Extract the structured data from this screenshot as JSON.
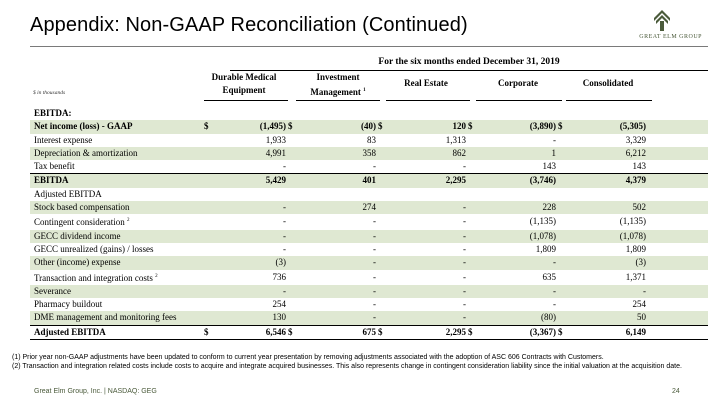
{
  "title": "Appendix: Non-GAAP Reconciliation (Continued)",
  "logo": {
    "text": "GREAT ELM GROUP",
    "icon": "roof-chevron-icon",
    "color": "#4a5a3a"
  },
  "table": {
    "period": "For the six months ended December 31, 2019",
    "units": "$ in thousands",
    "columns": [
      {
        "line1": "Durable Medical",
        "line2": "Equipment",
        "note": ""
      },
      {
        "line1": "Investment",
        "line2": "Management",
        "note": "1"
      },
      {
        "line1": "Real Estate",
        "line2": "",
        "note": ""
      },
      {
        "line1": "Corporate",
        "line2": "",
        "note": ""
      },
      {
        "line1": "Consolidated",
        "line2": "",
        "note": ""
      }
    ],
    "rows": [
      {
        "label": "EBITDA:",
        "note": "",
        "values": [
          "",
          "",
          "",
          "",
          ""
        ],
        "currency": false
      },
      {
        "label": "Net income (loss) - GAAP",
        "note": "",
        "values": [
          "(1,495)",
          "(40)",
          "120",
          "(3,890)",
          "(5,305)"
        ],
        "currency": true
      },
      {
        "label": "Interest expense",
        "note": "",
        "values": [
          "1,933",
          "83",
          "1,313",
          "-",
          "3,329"
        ],
        "currency": false
      },
      {
        "label": "Depreciation & amortization",
        "note": "",
        "values": [
          "4,991",
          "358",
          "862",
          "1",
          "6,212"
        ],
        "currency": false
      },
      {
        "label": "Tax benefit",
        "note": "",
        "values": [
          "-",
          "-",
          "-",
          "143",
          "143"
        ],
        "currency": false
      },
      {
        "label": "EBITDA",
        "note": "",
        "values": [
          "5,429",
          "401",
          "2,295",
          "(3,746)",
          "4,379"
        ],
        "currency": false
      },
      {
        "label": "Adjusted EBITDA",
        "note": "",
        "values": [
          "",
          "",
          "",
          "",
          ""
        ],
        "currency": false
      },
      {
        "label": "Stock based compensation",
        "note": "",
        "values": [
          "-",
          "274",
          "-",
          "228",
          "502"
        ],
        "currency": false
      },
      {
        "label": "Contingent consideration",
        "note": "2",
        "values": [
          "-",
          "-",
          "-",
          "(1,135)",
          "(1,135)"
        ],
        "currency": false
      },
      {
        "label": "GECC dividend income",
        "note": "",
        "values": [
          "-",
          "-",
          "-",
          "(1,078)",
          "(1,078)"
        ],
        "currency": false
      },
      {
        "label": "GECC unrealized (gains) /  losses",
        "note": "",
        "values": [
          "-",
          "-",
          "-",
          "1,809",
          "1,809"
        ],
        "currency": false
      },
      {
        "label": "Other (income) expense",
        "note": "",
        "values": [
          "(3)",
          "-",
          "-",
          "-",
          "(3)"
        ],
        "currency": false
      },
      {
        "label": "Transaction and integration costs",
        "note": "2",
        "values": [
          "736",
          "-",
          "-",
          "635",
          "1,371"
        ],
        "currency": false
      },
      {
        "label": "Severance",
        "note": "",
        "values": [
          "-",
          "-",
          "-",
          "-",
          "-"
        ],
        "currency": false
      },
      {
        "label": "Pharmacy buildout",
        "note": "",
        "values": [
          "254",
          "-",
          "-",
          "-",
          "254"
        ],
        "currency": false
      },
      {
        "label": "DME management and monitoring fees",
        "note": "",
        "values": [
          "130",
          "-",
          "-",
          "(80)",
          "50"
        ],
        "currency": false
      },
      {
        "label": "Adjusted EBITDA",
        "note": "",
        "values": [
          "6,546",
          "675",
          "2,295",
          "(3,367)",
          "6,149"
        ],
        "currency": true
      }
    ],
    "currency_symbol": "$"
  },
  "notes": [
    "(1) Prior year non-GAAP adjustments have been updated to conform to current year presentation by removing adjustments associated with the adoption of ASC 606 Contracts with Customers.",
    "(2) Transaction and integration related costs include costs to acquire and integrate acquired businesses.  This also represents change in contingent consideration liability since the initial valuation at the acquisition date."
  ],
  "footer": {
    "left": "Great Elm Group, Inc. | NASDAQ: GEG",
    "page": "24"
  },
  "colors": {
    "shade": "#dfe8d2",
    "brand": "#4a5a3a"
  }
}
